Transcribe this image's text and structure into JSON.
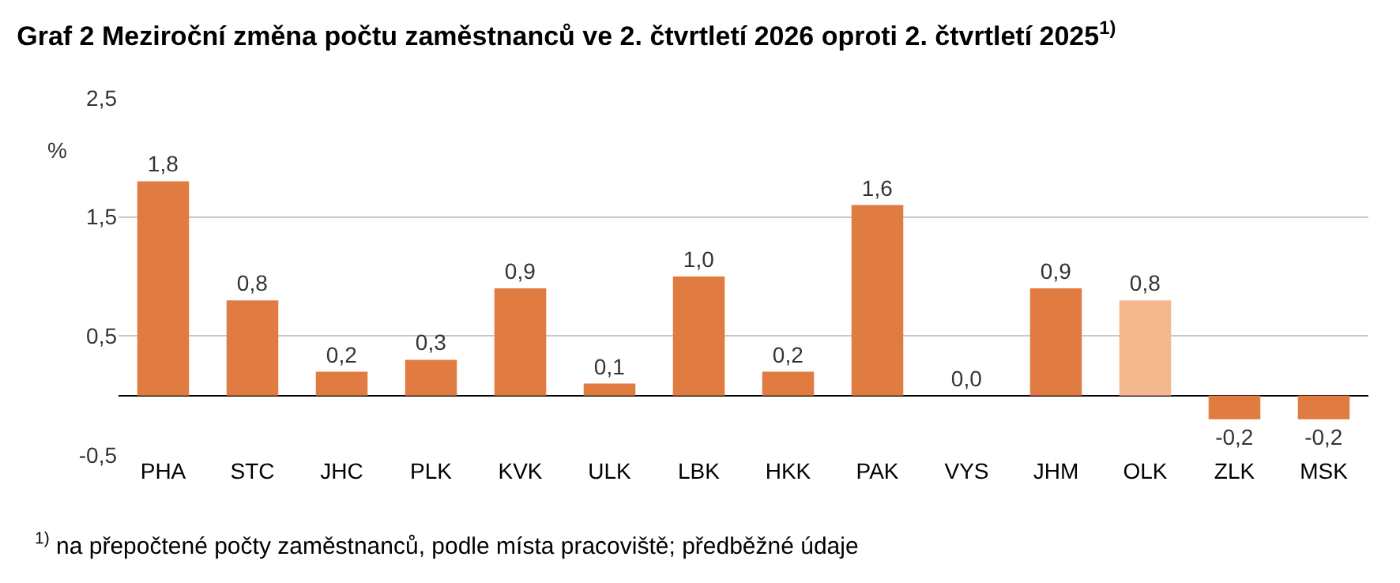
{
  "chart_data": {
    "type": "bar",
    "title": "Graf 2 Meziroční změna počtu zaměstnanců ve 2. čtvrtletí 2026 oproti 2. čtvrtletí 2025$^{1)}$",
    "ylabel": "%",
    "categories": [
      "PHA",
      "STC",
      "JHC",
      "PLK",
      "KVK",
      "ULK",
      "LBK",
      "HKK",
      "PAK",
      "VYS",
      "JHM",
      "OLK",
      "ZLK",
      "MSK"
    ],
    "values": [
      1.8,
      0.8,
      0.2,
      0.3,
      0.9,
      0.1,
      1.0,
      0.2,
      1.6,
      0.0,
      0.9,
      0.8,
      -0.2,
      -0.2
    ],
    "colors": [
      "#e07b42",
      "#e07b42",
      "#e07b42",
      "#e07b42",
      "#e07b42",
      "#e07b42",
      "#e07b42",
      "#e07b42",
      "#e07b42",
      "#e07b42",
      "#e07b42",
      "#f4b88e",
      "#e07b42",
      "#e07b42"
    ],
    "value_labels": [
      "1,8",
      "0,8",
      "0,2",
      "0,3",
      "0,9",
      "0,1",
      "1,0",
      "0,2",
      "1,6",
      "0,0",
      "0,9",
      "0,8",
      "-0,2",
      "-0,2"
    ],
    "ylim": [
      -0.5,
      2.5
    ],
    "yticks": [
      {
        "value": -0.5,
        "label": "-0,5"
      },
      {
        "value": 0.5,
        "label": "0,5"
      },
      {
        "value": 1.5,
        "label": "1,5"
      },
      {
        "value": 2.5,
        "label": "2,5"
      }
    ],
    "grid": "y",
    "annotations": [
      "$^{1)}$ na přepočtené počty zaměstnanců, podle místa pracoviště; předběžné údaje"
    ]
  }
}
